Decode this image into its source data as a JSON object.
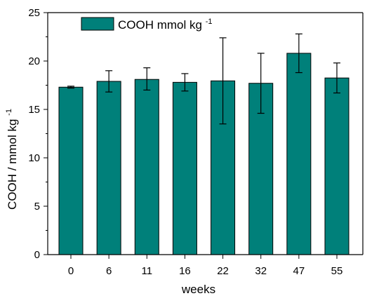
{
  "chart_data": {
    "type": "bar",
    "categories": [
      "0",
      "6",
      "11",
      "16",
      "22",
      "32",
      "47",
      "55"
    ],
    "series": [
      {
        "name": "COOH mmol kg",
        "name_superscript": "-1",
        "values": [
          17.3,
          17.9,
          18.1,
          17.8,
          17.95,
          17.7,
          20.8,
          18.25
        ],
        "err_upper": [
          17.4,
          19.0,
          19.3,
          18.7,
          22.4,
          20.8,
          22.8,
          19.8
        ],
        "err_lower": [
          17.2,
          16.8,
          17.0,
          16.9,
          13.5,
          14.6,
          18.8,
          16.7
        ]
      }
    ],
    "xlabel": "weeks",
    "ylabel": "COOH / mmol kg",
    "ylabel_superscript": "-1",
    "ylim": [
      0,
      25
    ],
    "yticks": [
      0,
      5,
      10,
      15,
      20,
      25
    ],
    "grid": false,
    "legend_position": "top-left",
    "bar_color": "#00807a",
    "bar_edge_color": "#000000"
  }
}
